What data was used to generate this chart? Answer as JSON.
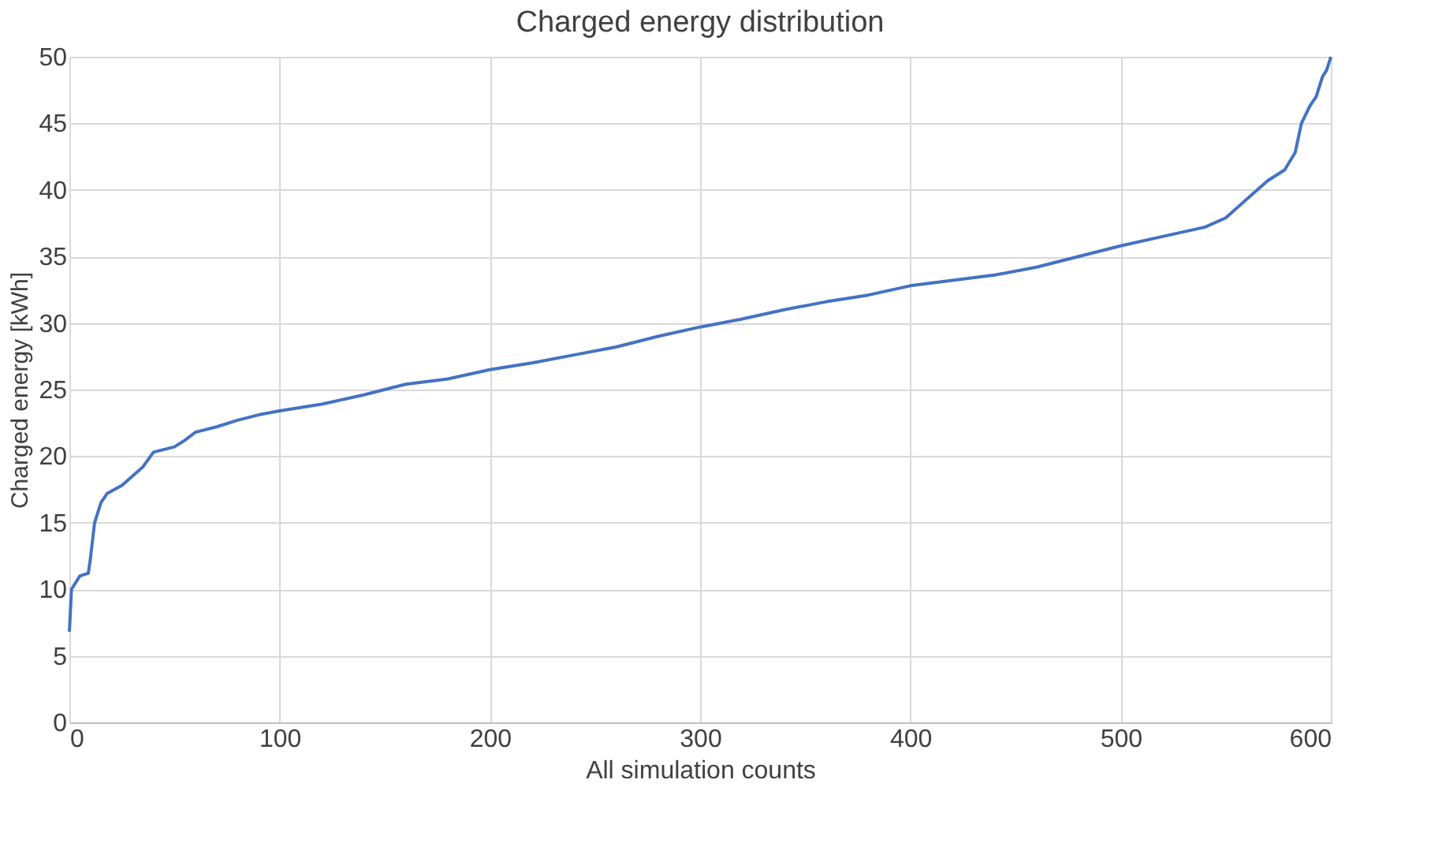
{
  "chart_data": {
    "type": "line",
    "title": "Charged energy distribution",
    "xlabel": "All simulation counts",
    "ylabel": "Charged energy [kWh]",
    "x": [
      0,
      1,
      3,
      5,
      9,
      10,
      12,
      15,
      18,
      25,
      30,
      35,
      40,
      50,
      55,
      60,
      70,
      80,
      90,
      100,
      120,
      140,
      160,
      180,
      200,
      220,
      240,
      260,
      280,
      300,
      320,
      340,
      360,
      380,
      400,
      420,
      440,
      460,
      480,
      500,
      520,
      540,
      550,
      560,
      570,
      578,
      583,
      586,
      590,
      593,
      596,
      598,
      600
    ],
    "series": [
      {
        "color": "#4472c4",
        "values": [
          6.8,
          10,
          10.5,
          11,
          11.2,
          12.3,
          15,
          16.5,
          17.2,
          17.8,
          18.5,
          19.2,
          20.3,
          20.7,
          21.2,
          21.8,
          22.2,
          22.7,
          23.1,
          23.4,
          23.9,
          24.6,
          25.4,
          25.8,
          26.5,
          27,
          27.6,
          28.2,
          29,
          29.7,
          30.3,
          31,
          31.6,
          32.1,
          32.8,
          33.2,
          33.6,
          34.2,
          35,
          35.8,
          36.5,
          37.2,
          37.9,
          39.3,
          40.7,
          41.5,
          42.8,
          45,
          46.3,
          47,
          48.5,
          49,
          50
        ]
      }
    ],
    "xlim": [
      0,
      600
    ],
    "xticks": [
      0,
      100,
      200,
      300,
      400,
      500,
      600
    ],
    "ylim": [
      0,
      50
    ],
    "yticks": [
      0,
      5,
      10,
      15,
      20,
      25,
      30,
      35,
      40,
      45,
      50
    ],
    "grid": true,
    "line_style": "solid"
  }
}
